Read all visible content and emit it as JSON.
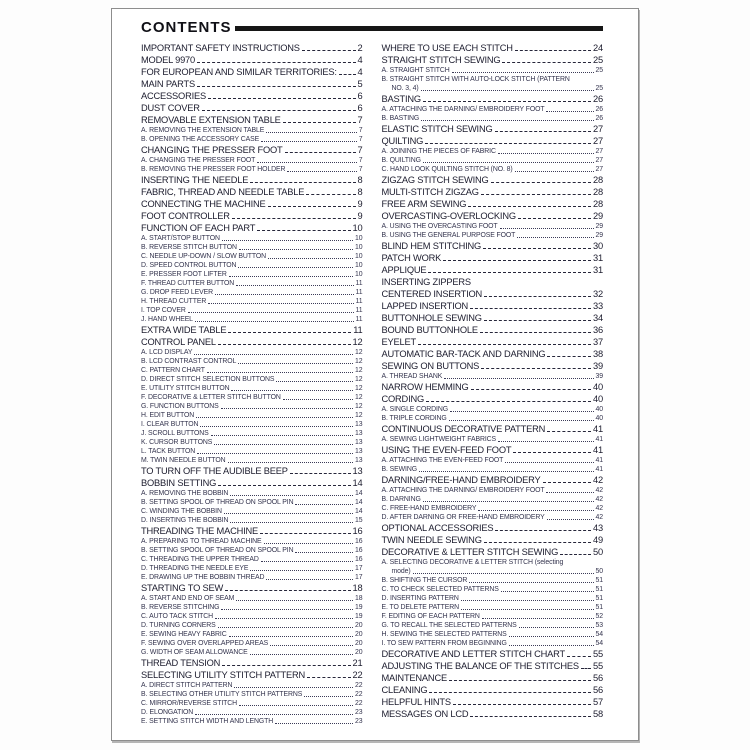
{
  "document": {
    "title": "CONTENTS",
    "left_column": [
      {
        "t": "IMPORTANT SAFETY INSTRUCTIONS",
        "p": "2",
        "l": 0
      },
      {
        "t": "MODEL 9970",
        "p": "4",
        "l": 0
      },
      {
        "t": "FOR EUROPEAN AND SIMILAR TERRITORIES:",
        "p": "4",
        "l": 0
      },
      {
        "t": "MAIN PARTS",
        "p": "5",
        "l": 0
      },
      {
        "t": "ACCESSORIES",
        "p": "6",
        "l": 0
      },
      {
        "t": "DUST COVER",
        "p": "6",
        "l": 0
      },
      {
        "t": "REMOVABLE EXTENSION TABLE",
        "p": "7",
        "l": 0
      },
      {
        "t": "A. REMOVING THE EXTENSION TABLE",
        "p": "7",
        "l": 1
      },
      {
        "t": "B. OPENING THE ACCESSORY CASE",
        "p": "7",
        "l": 1
      },
      {
        "t": "CHANGING THE PRESSER FOOT",
        "p": "7",
        "l": 0
      },
      {
        "t": "A. CHANGING THE PRESSER FOOT",
        "p": "7",
        "l": 1
      },
      {
        "t": "B. REMOVING THE PRESSER FOOT HOLDER",
        "p": "7",
        "l": 1
      },
      {
        "t": "INSERTING THE NEEDLE",
        "p": "8",
        "l": 0
      },
      {
        "t": "FABRIC, THREAD AND NEEDLE TABLE",
        "p": "8",
        "l": 0
      },
      {
        "t": "CONNECTING THE MACHINE",
        "p": "9",
        "l": 0
      },
      {
        "t": "FOOT CONTROLLER",
        "p": "9",
        "l": 0
      },
      {
        "t": "FUNCTION OF EACH PART",
        "p": "10",
        "l": 0
      },
      {
        "t": "A. START/STOP BUTTON",
        "p": "10",
        "l": 1
      },
      {
        "t": "B. REVERSE STITCH BUTTON",
        "p": "10",
        "l": 1
      },
      {
        "t": "C. NEEDLE UP-DOWN / SLOW BUTTON",
        "p": "10",
        "l": 1
      },
      {
        "t": "D. SPEED CONTROL BUTTON",
        "p": "10",
        "l": 1
      },
      {
        "t": "E. PRESSER FOOT LIFTER",
        "p": "10",
        "l": 1
      },
      {
        "t": "F. THREAD CUTTER BUTTON",
        "p": "11",
        "l": 1
      },
      {
        "t": "G. DROP FEED LEVER",
        "p": "11",
        "l": 1
      },
      {
        "t": "H. THREAD CUTTER",
        "p": "11",
        "l": 1
      },
      {
        "t": "I. TOP COVER",
        "p": "11",
        "l": 1
      },
      {
        "t": "J. HAND WHEEL",
        "p": "11",
        "l": 1
      },
      {
        "t": "EXTRA WIDE TABLE",
        "p": "11",
        "l": 0
      },
      {
        "t": "CONTROL PANEL",
        "p": "12",
        "l": 0
      },
      {
        "t": "A. LCD DISPLAY",
        "p": "12",
        "l": 1
      },
      {
        "t": "B. LCD CONTRAST CONTROL",
        "p": "12",
        "l": 1
      },
      {
        "t": "C. PATTERN CHART",
        "p": "12",
        "l": 1
      },
      {
        "t": "D. DIRECT STITCH SELECTION BUTTONS",
        "p": "12",
        "l": 1
      },
      {
        "t": "E. UTILITY STITCH BUTTON",
        "p": "12",
        "l": 1
      },
      {
        "t": "F. DECORATIVE & LETTER STITCH BUTTON",
        "p": "12",
        "l": 1
      },
      {
        "t": "G. FUNCTION BUTTONS",
        "p": "12",
        "l": 1
      },
      {
        "t": "H. EDIT BUTTON",
        "p": "12",
        "l": 1
      },
      {
        "t": "I. CLEAR BUTTON",
        "p": "13",
        "l": 1
      },
      {
        "t": "J. SCROLL BUTTONS",
        "p": "13",
        "l": 1
      },
      {
        "t": "K. CURSOR BUTTONS",
        "p": "13",
        "l": 1
      },
      {
        "t": "L. TACK BUTTON",
        "p": "13",
        "l": 1
      },
      {
        "t": "M. TWIN NEEDLE BUTTON",
        "p": "13",
        "l": 1
      },
      {
        "t": "TO TURN OFF THE AUDIBLE BEEP",
        "p": "13",
        "l": 0
      },
      {
        "t": "BOBBIN SETTING",
        "p": "14",
        "l": 0
      },
      {
        "t": "A. REMOVING THE BOBBIN",
        "p": "14",
        "l": 1
      },
      {
        "t": "B. SETTING SPOOL OF THREAD ON SPOOL PIN",
        "p": "14",
        "l": 1
      },
      {
        "t": "C. WINDING THE BOBBIN",
        "p": "14",
        "l": 1
      },
      {
        "t": "D. INSERTING THE BOBBIN",
        "p": "15",
        "l": 1
      },
      {
        "t": "THREADING THE MACHINE",
        "p": "16",
        "l": 0
      },
      {
        "t": "A. PREPARING TO THREAD MACHINE",
        "p": "16",
        "l": 1
      },
      {
        "t": "B. SETTING SPOOL OF THREAD ON SPOOL PIN",
        "p": "16",
        "l": 1
      },
      {
        "t": "C. THREADING THE UPPER THREAD",
        "p": "16",
        "l": 1
      },
      {
        "t": "D. THREADING THE NEEDLE EYE",
        "p": "17",
        "l": 1
      },
      {
        "t": "E. DRAWING UP THE BOBBIN THREAD",
        "p": "17",
        "l": 1
      },
      {
        "t": "STARTING TO SEW",
        "p": "18",
        "l": 0
      },
      {
        "t": "A. START AND END OF SEAM",
        "p": "18",
        "l": 1
      },
      {
        "t": "B. REVERSE STITCHING",
        "p": "19",
        "l": 1
      },
      {
        "t": "C. AUTO TACK STITCH",
        "p": "19",
        "l": 1
      },
      {
        "t": "D. TURNING CORNERS",
        "p": "20",
        "l": 1
      },
      {
        "t": "E. SEWING HEAVY FABRIC",
        "p": "20",
        "l": 1
      },
      {
        "t": "F. SEWING OVER OVERLAPPED AREAS",
        "p": "20",
        "l": 1
      },
      {
        "t": "G. WIDTH OF SEAM ALLOWANCE",
        "p": "20",
        "l": 1
      },
      {
        "t": "THREAD TENSION",
        "p": "21",
        "l": 0
      },
      {
        "t": "SELECTING UTILITY STITCH PATTERN",
        "p": "22",
        "l": 0
      },
      {
        "t": "A. DIRECT STITCH PATTERN",
        "p": "22",
        "l": 1
      },
      {
        "t": "B. SELECTING OTHER UTILITY STITCH PATTERNS",
        "p": "22",
        "l": 1
      },
      {
        "t": "C. MIRROR/REVERSE STITCH",
        "p": "22",
        "l": 1
      },
      {
        "t": "D. ELONGATION",
        "p": "23",
        "l": 1
      },
      {
        "t": "E. SETTING STITCH WIDTH AND LENGTH",
        "p": "23",
        "l": 1
      }
    ],
    "right_column": [
      {
        "t": "WHERE TO USE EACH STITCH",
        "p": "24",
        "l": 0
      },
      {
        "t": "STRAIGHT STITCH SEWING",
        "p": "25",
        "l": 0
      },
      {
        "t": "A. STRAIGHT STITCH",
        "p": "25",
        "l": 1
      },
      {
        "t": "B. STRAIGHT STITCH WITH AUTO-LOCK STITCH (PATTERN",
        "p": "",
        "l": 1
      },
      {
        "t": "NO. 3, 4)",
        "p": "25",
        "l": 2
      },
      {
        "t": "BASTING",
        "p": "26",
        "l": 0
      },
      {
        "t": "A. ATTACHING THE DARNING/ EMBROIDERY FOOT",
        "p": "26",
        "l": 1
      },
      {
        "t": "B. BASTING",
        "p": "26",
        "l": 1
      },
      {
        "t": "ELASTIC STITCH SEWING",
        "p": "27",
        "l": 0
      },
      {
        "t": "QUILTING",
        "p": "27",
        "l": 0
      },
      {
        "t": "A. JOINING THE PIECES OF FABRIC",
        "p": "27",
        "l": 1
      },
      {
        "t": "B. QUILTING",
        "p": "27",
        "l": 1
      },
      {
        "t": "C. HAND LOOK QUILTING STITCH (NO. 8)",
        "p": "27",
        "l": 1
      },
      {
        "t": "ZIGZAG STITCH SEWING",
        "p": "28",
        "l": 0
      },
      {
        "t": "MULTI-STITCH ZIGZAG",
        "p": "28",
        "l": 0
      },
      {
        "t": "FREE ARM SEWING",
        "p": "28",
        "l": 0
      },
      {
        "t": "OVERCASTING-OVERLOCKING",
        "p": "29",
        "l": 0
      },
      {
        "t": "A. USING THE OVERCASTING FOOT",
        "p": "29",
        "l": 1
      },
      {
        "t": "B. USING THE GENERAL PURPOSE FOOT",
        "p": "29",
        "l": 1
      },
      {
        "t": "BLIND HEM STITCHING",
        "p": "30",
        "l": 0
      },
      {
        "t": "PATCH WORK",
        "p": "31",
        "l": 0
      },
      {
        "t": "APPLIQUE",
        "p": "31",
        "l": 0
      },
      {
        "t": "INSERTING ZIPPERS",
        "p": "",
        "l": 0
      },
      {
        "t": "CENTERED INSERTION",
        "p": "32",
        "l": 0
      },
      {
        "t": "LAPPED INSERTION",
        "p": "33",
        "l": 0
      },
      {
        "t": "BUTTONHOLE SEWING",
        "p": "34",
        "l": 0
      },
      {
        "t": "BOUND BUTTONHOLE",
        "p": "36",
        "l": 0
      },
      {
        "t": "EYELET",
        "p": "37",
        "l": 0
      },
      {
        "t": "AUTOMATIC BAR-TACK AND DARNING",
        "p": "38",
        "l": 0
      },
      {
        "t": "SEWING ON BUTTONS",
        "p": "39",
        "l": 0
      },
      {
        "t": "A. THREAD SHANK",
        "p": "39",
        "l": 1
      },
      {
        "t": "NARROW HEMMING",
        "p": "40",
        "l": 0
      },
      {
        "t": "CORDING",
        "p": "40",
        "l": 0
      },
      {
        "t": "A. SINGLE CORDING",
        "p": "40",
        "l": 1
      },
      {
        "t": "B. TRIPLE CORDING",
        "p": "40",
        "l": 1
      },
      {
        "t": "CONTINUOUS DECORATIVE PATTERN",
        "p": "41",
        "l": 0
      },
      {
        "t": "A. SEWING LIGHTWEIGHT FABRICS",
        "p": "41",
        "l": 1
      },
      {
        "t": "USING THE EVEN-FEED FOOT",
        "p": "41",
        "l": 0
      },
      {
        "t": "A. ATTACHING THE EVEN-FEED FOOT",
        "p": "41",
        "l": 1
      },
      {
        "t": "B. SEWING",
        "p": "41",
        "l": 1
      },
      {
        "t": "DARNING/FREE-HAND EMBROIDERY",
        "p": "42",
        "l": 0
      },
      {
        "t": "A. ATTACHING THE DARNING/ EMBROIDERY FOOT",
        "p": "42",
        "l": 1
      },
      {
        "t": "B. DARNING",
        "p": "42",
        "l": 1
      },
      {
        "t": "C. FREE-HAND EMBROIDERY",
        "p": "42",
        "l": 1
      },
      {
        "t": "D. AFTER DARNING OR FREE-HAND EMBROIDERY",
        "p": "42",
        "l": 1
      },
      {
        "t": "OPTIONAL ACCESSORIES",
        "p": "43",
        "l": 0
      },
      {
        "t": "TWIN NEEDLE SEWING",
        "p": "49",
        "l": 0
      },
      {
        "t": "DECORATIVE & LETTER STITCH SEWING",
        "p": "50",
        "l": 0
      },
      {
        "t": "A. SELECTING DECORATIVE & LETTER STITCH (selecting",
        "p": "",
        "l": 1
      },
      {
        "t": "mode)",
        "p": "50",
        "l": 2
      },
      {
        "t": "B. SHIFTING THE CURSOR",
        "p": "51",
        "l": 1
      },
      {
        "t": "C. TO CHECK SELECTED PATTERNS",
        "p": "51",
        "l": 1
      },
      {
        "t": "D. INSERTING PATTERN",
        "p": "51",
        "l": 1
      },
      {
        "t": "E. TO DELETE PATTERN",
        "p": "51",
        "l": 1
      },
      {
        "t": "F. EDITING OF EACH PATTERN",
        "p": "52",
        "l": 1
      },
      {
        "t": "G. TO RECALL THE SELECTED PATTERNS",
        "p": "53",
        "l": 1
      },
      {
        "t": "H. SEWING THE SELECTED PATTERNS",
        "p": "54",
        "l": 1
      },
      {
        "t": "I. TO SEW PATTERN FROM BEGINNING",
        "p": "54",
        "l": 1
      },
      {
        "t": "DECORATIVE AND LETTER STITCH CHART",
        "p": "55",
        "l": 0
      },
      {
        "t": "ADJUSTING THE BALANCE OF THE STITCHES",
        "p": "55",
        "l": 0
      },
      {
        "t": "MAINTENANCE",
        "p": "56",
        "l": 0
      },
      {
        "t": "CLEANING",
        "p": "56",
        "l": 0
      },
      {
        "t": "HELPFUL HINTS",
        "p": "57",
        "l": 0
      },
      {
        "t": "MESSAGES ON LCD",
        "p": "58",
        "l": 0
      }
    ],
    "colors": {
      "rule": "#161616",
      "main_text": "#1c1c2e",
      "sub_text": "#34344e",
      "page_border": "#8d8d8d"
    }
  }
}
